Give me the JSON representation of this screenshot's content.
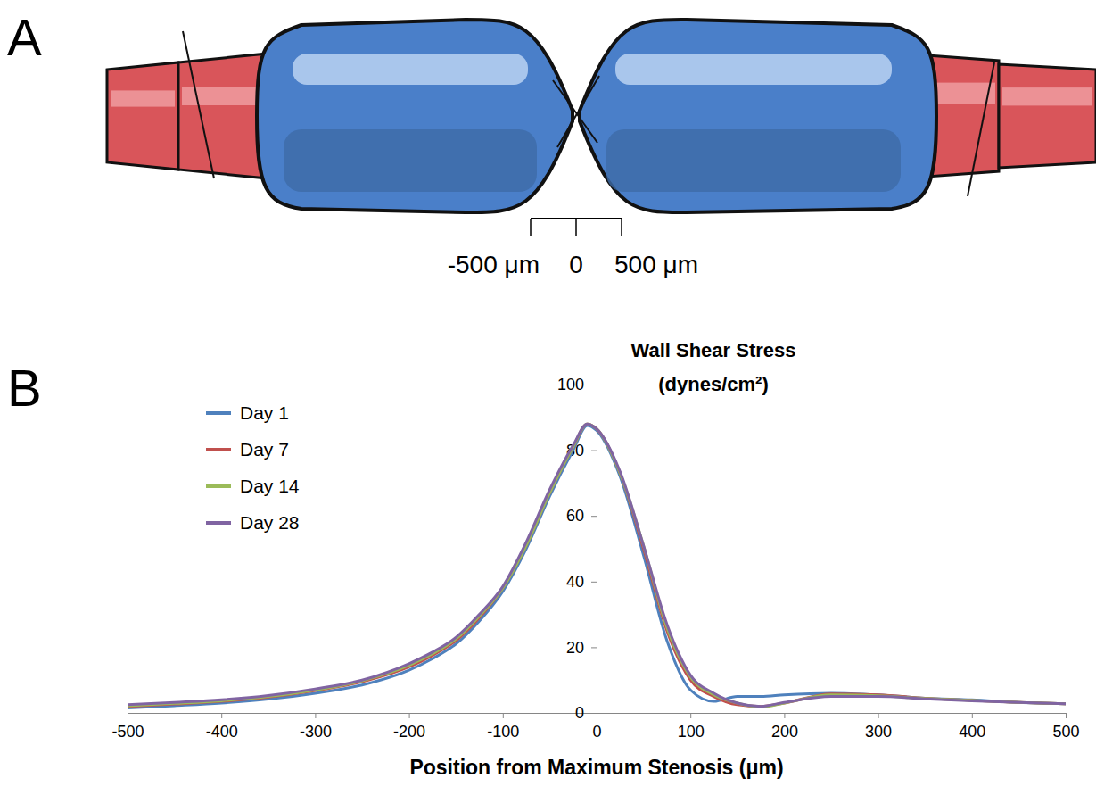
{
  "panels": [
    {
      "letter": "A",
      "scale_labels": [
        "-500 μm",
        "0",
        "500 μm"
      ]
    },
    {
      "letter": "B"
    }
  ],
  "chart_data": {
    "type": "line",
    "title": "Wall Shear Stress",
    "subtitle": "(dynes/cm²)",
    "x_label": "Position from Maximum Stenosis (μm)",
    "x": [
      -500,
      -450,
      -400,
      -350,
      -300,
      -250,
      -200,
      -175,
      -150,
      -125,
      -100,
      -75,
      -50,
      -25,
      -10,
      0,
      25,
      50,
      75,
      100,
      125,
      150,
      175,
      200,
      250,
      300,
      350,
      400,
      450,
      500
    ],
    "series": [
      {
        "name": "Day 1",
        "color": "#4f81bd",
        "values": [
          1.5,
          2.2,
          3,
          4.2,
          6,
          8.5,
          13,
          16.5,
          21,
          28,
          37,
          50,
          66,
          80,
          87.5,
          86,
          72,
          48,
          22,
          7,
          3.5,
          5,
          5,
          5.5,
          6,
          5.5,
          4.5,
          4,
          3.2,
          2.8
        ]
      },
      {
        "name": "Day 7",
        "color": "#c0504d",
        "values": [
          2,
          2.7,
          3.5,
          4.8,
          6.8,
          9.5,
          14,
          17.5,
          22,
          29,
          38,
          51,
          67,
          81,
          88,
          86.5,
          73,
          50,
          25,
          10,
          5,
          2.5,
          2,
          3,
          5.8,
          5.5,
          4.5,
          3.8,
          3.2,
          2.8
        ]
      },
      {
        "name": "Day 14",
        "color": "#9bbb59",
        "values": [
          2.2,
          2.9,
          3.7,
          5,
          7,
          9.8,
          14.5,
          18,
          22.5,
          29.5,
          38,
          51,
          67,
          81,
          88,
          86.5,
          73,
          51,
          26,
          11,
          5.5,
          3,
          1.8,
          3,
          5.5,
          5.2,
          4.4,
          3.8,
          3.2,
          2.8
        ]
      },
      {
        "name": "Day 28",
        "color": "#8064a2",
        "values": [
          2.5,
          3.2,
          4,
          5.3,
          7.3,
          10,
          15,
          18.5,
          23,
          30,
          38.5,
          52,
          68,
          81.5,
          88,
          86.5,
          73.5,
          51,
          27,
          11.5,
          6,
          3,
          2,
          3.2,
          5,
          5,
          4.3,
          3.7,
          3.2,
          2.8
        ]
      }
    ],
    "xlim": [
      -500,
      500
    ],
    "xticks": [
      -500,
      -400,
      -300,
      -200,
      -100,
      0,
      100,
      200,
      300,
      400,
      500
    ],
    "ylim": [
      0,
      100
    ],
    "yticks": [
      0,
      20,
      40,
      60,
      80,
      100
    ],
    "grid": false,
    "legend": "top-left"
  }
}
